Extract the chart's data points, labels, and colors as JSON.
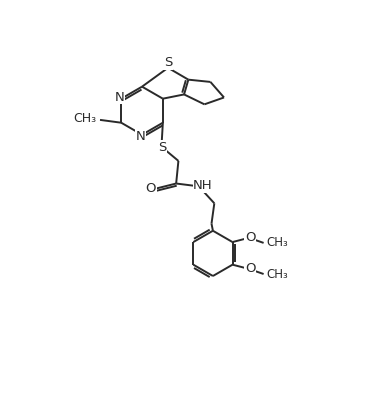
{
  "bg_color": "#ffffff",
  "line_color": "#2a2a2a",
  "line_width": 1.4,
  "font_size": 9.5,
  "figsize": [
    3.82,
    4.04
  ],
  "dpi": 100,
  "xlim": [
    0,
    10
  ],
  "ylim": [
    0,
    11
  ]
}
